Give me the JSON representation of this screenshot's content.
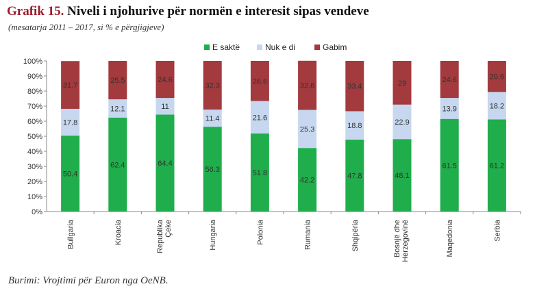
{
  "title_prefix": "Grafik 15.",
  "title_text": "Niveli i njohurive për normën e interesit sipas vendeve",
  "subtitle": "(mesatarja 2011 – 2017, si % e përgjigjeve)",
  "source": "Burimi: Vrojtimi për Euron nga OeNB.",
  "chart_data": {
    "type": "bar",
    "stacked": true,
    "categories": [
      [
        "Bullgaria"
      ],
      [
        "Kroacia"
      ],
      [
        "Republika",
        "Çeke"
      ],
      [
        "Hungaria"
      ],
      [
        "Polonia"
      ],
      [
        "Rumania"
      ],
      [
        "Shqipëria"
      ],
      [
        "Bosnjë dhe",
        "Herzegovinë"
      ],
      [
        "Maqedonia"
      ],
      [
        "Serbia"
      ]
    ],
    "series": [
      {
        "name": "E saktë",
        "color": "#1fae4b",
        "values": [
          50.4,
          62.4,
          64.4,
          56.3,
          51.8,
          42.2,
          47.8,
          48.1,
          61.5,
          61.2
        ],
        "labels": [
          "50.4",
          "62.4",
          "64.4",
          "56.3",
          "51.8",
          "42.2",
          "47.8",
          "48.1",
          "61.5",
          "61.2"
        ]
      },
      {
        "name": "Nuk e di",
        "color": "#c6d7ef",
        "values": [
          17.8,
          12.1,
          11,
          11.4,
          21.6,
          25.3,
          18.8,
          22.9,
          13.9,
          18.2
        ],
        "labels": [
          "17.8",
          "12.1",
          "11",
          "11.4",
          "21.6",
          "25.3",
          "18.8",
          "22.9",
          "13.9",
          "18.2"
        ]
      },
      {
        "name": "Gabim",
        "color": "#a23a3e",
        "values": [
          31.7,
          25.5,
          24.6,
          32.3,
          26.6,
          32.6,
          33.4,
          29,
          24.6,
          20.6
        ],
        "labels": [
          "31.7",
          "25.5",
          "24.6",
          "32.3",
          "26.6",
          "32.6",
          "33.4",
          "29",
          "24.6",
          "20.6"
        ]
      }
    ],
    "yticks": [
      "0%",
      "10%",
      "20%",
      "30%",
      "40%",
      "50%",
      "60%",
      "70%",
      "80%",
      "90%",
      "100%"
    ],
    "ylim": [
      0,
      100
    ],
    "legend_position": "top",
    "grid": false
  }
}
